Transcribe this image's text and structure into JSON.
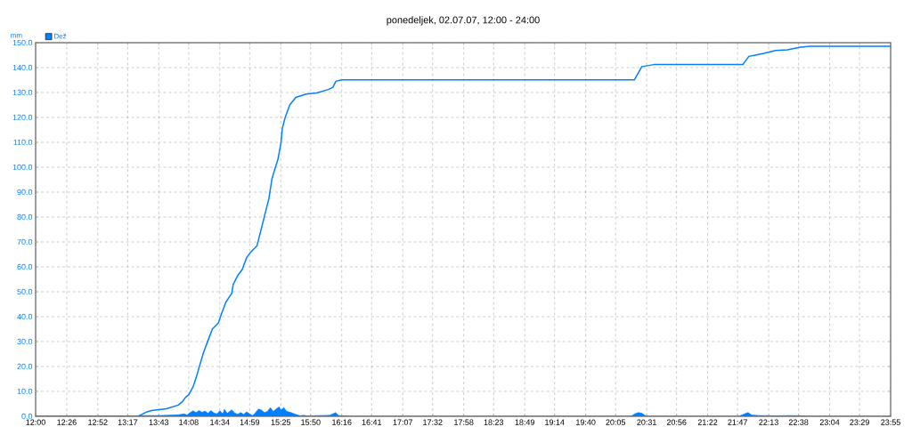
{
  "chart_data": {
    "type": "line",
    "title": "ponedeljek, 02.07.07, 12:00 - 24:00",
    "ylabel": "mm",
    "xlim": [
      12,
      23.9167
    ],
    "ylim": [
      0,
      150
    ],
    "xticks": [
      {
        "value": 12,
        "label": "12:00"
      },
      {
        "value": 12.4333,
        "label": "12:26"
      },
      {
        "value": 12.8667,
        "label": "12:52"
      },
      {
        "value": 13.2833,
        "label": "13:17"
      },
      {
        "value": 13.7167,
        "label": "13:43"
      },
      {
        "value": 14.1333,
        "label": "14:08"
      },
      {
        "value": 14.5667,
        "label": "14:34"
      },
      {
        "value": 14.9833,
        "label": "14:59"
      },
      {
        "value": 15.4167,
        "label": "15:25"
      },
      {
        "value": 15.8333,
        "label": "15:50"
      },
      {
        "value": 16.2667,
        "label": "16:16"
      },
      {
        "value": 16.6833,
        "label": "16:41"
      },
      {
        "value": 17.1167,
        "label": "17:07"
      },
      {
        "value": 17.5333,
        "label": "17:32"
      },
      {
        "value": 17.9667,
        "label": "17:58"
      },
      {
        "value": 18.3833,
        "label": "18:23"
      },
      {
        "value": 18.8167,
        "label": "18:49"
      },
      {
        "value": 19.2333,
        "label": "19:14"
      },
      {
        "value": 19.6667,
        "label": "19:40"
      },
      {
        "value": 20.0833,
        "label": "20:05"
      },
      {
        "value": 20.5167,
        "label": "20:31"
      },
      {
        "value": 20.9333,
        "label": "20:56"
      },
      {
        "value": 21.3667,
        "label": "21:22"
      },
      {
        "value": 21.7833,
        "label": "21:47"
      },
      {
        "value": 22.2167,
        "label": "22:13"
      },
      {
        "value": 22.6333,
        "label": "22:38"
      },
      {
        "value": 23.0667,
        "label": "23:04"
      },
      {
        "value": 23.4833,
        "label": "23:29"
      },
      {
        "value": 23.9167,
        "label": "23:55"
      }
    ],
    "yticks": [
      {
        "value": 0,
        "label": "0.0"
      },
      {
        "value": 10,
        "label": "10.0"
      },
      {
        "value": 20,
        "label": "20.0"
      },
      {
        "value": 30,
        "label": "30.0"
      },
      {
        "value": 40,
        "label": "40.0"
      },
      {
        "value": 50,
        "label": "50.0"
      },
      {
        "value": 60,
        "label": "60.0"
      },
      {
        "value": 70,
        "label": "70.0"
      },
      {
        "value": 80,
        "label": "80.0"
      },
      {
        "value": 90,
        "label": "90.0"
      },
      {
        "value": 100,
        "label": "100.0"
      },
      {
        "value": 110,
        "label": "110.0"
      },
      {
        "value": 120,
        "label": "120.0"
      },
      {
        "value": 130,
        "label": "130.0"
      },
      {
        "value": 140,
        "label": "140.0"
      },
      {
        "value": 150,
        "label": "150.0"
      }
    ],
    "grid": true,
    "legend": "top left",
    "marker": "none",
    "line_style": "solid",
    "series": [
      {
        "type": "area",
        "name": "Dež",
        "color": "#0080ff",
        "x": [
          12,
          13.408,
          13.45,
          13.657,
          13.822,
          13.988,
          14.071,
          14.112,
          14.154,
          14.195,
          14.237,
          14.278,
          14.319,
          14.361,
          14.402,
          14.444,
          14.485,
          14.527,
          14.568,
          14.609,
          14.63,
          14.671,
          14.734,
          14.775,
          14.816,
          14.858,
          14.899,
          14.941,
          14.982,
          15.024,
          15.065,
          15.106,
          15.148,
          15.189,
          15.231,
          15.272,
          15.313,
          15.355,
          15.396,
          15.417,
          15.458,
          15.5,
          15.562,
          15.603,
          15.645,
          15.686,
          15.728,
          15.81,
          15.935,
          16.1,
          16.183,
          16.225,
          16.307,
          16.39,
          20.3,
          20.35,
          20.4,
          20.45,
          20.5,
          20.55,
          21.8,
          21.88,
          21.93,
          21.98,
          22.1,
          22.3,
          22.5,
          22.7,
          22.8,
          23.9167
        ],
        "values": [
          0,
          0,
          0.3,
          0.3,
          0.4,
          0.6,
          1.0,
          0.5,
          1.5,
          2.2,
          1.5,
          2.3,
          1.6,
          2.1,
          1.2,
          2.3,
          1.3,
          1.0,
          2.2,
          1.0,
          2.8,
          1.2,
          2.6,
          1.3,
          0.8,
          1.5,
          0.8,
          1.8,
          1.0,
          0.3,
          1.5,
          2.9,
          2.5,
          1.5,
          2.0,
          3.5,
          2.0,
          3.0,
          3.8,
          2.5,
          3.5,
          2.0,
          1.5,
          1.0,
          0.6,
          0.2,
          0.4,
          0.1,
          0.3,
          0.4,
          1.5,
          0.3,
          0.1,
          0,
          0,
          1.0,
          1.5,
          1.2,
          0.2,
          0,
          0,
          1.0,
          1.5,
          0.5,
          0.3,
          0.2,
          0.3,
          0.2,
          0,
          0
        ]
      },
      {
        "color": "#0080ff",
        "x": [
          12,
          13.429,
          13.553,
          13.615,
          13.822,
          13.988,
          14.05,
          14.092,
          14.133,
          14.195,
          14.237,
          14.278,
          14.34,
          14.402,
          14.464,
          14.547,
          14.589,
          14.651,
          14.734,
          14.754,
          14.816,
          14.879,
          14.941,
          15.003,
          15.086,
          15.148,
          15.21,
          15.252,
          15.293,
          15.335,
          15.376,
          15.418,
          15.438,
          15.48,
          15.542,
          15.625,
          15.77,
          15.915,
          16.081,
          16.143,
          16.185,
          16.267,
          20.346,
          20.449,
          20.615,
          21.857,
          21.94,
          22.044,
          22.148,
          22.313,
          22.478,
          22.644,
          22.789,
          23.9167
        ],
        "values": [
          0,
          0,
          1.8,
          2.3,
          3.0,
          4.5,
          6.0,
          7.7,
          8.6,
          11.9,
          15.5,
          19.6,
          25.6,
          30.4,
          35.1,
          37.5,
          41.1,
          45.8,
          49.4,
          53.0,
          56.5,
          58.9,
          63.7,
          66.1,
          68.5,
          75.6,
          82.7,
          87.5,
          95.2,
          99.4,
          103.0,
          109.5,
          115.5,
          120.2,
          125.0,
          128.0,
          129.4,
          129.8,
          131.2,
          132.1,
          134.5,
          135.1,
          135.1,
          140.4,
          141.2,
          141.2,
          144.5,
          145.1,
          145.7,
          146.9,
          147.1,
          148.1,
          148.6,
          148.6
        ]
      }
    ]
  }
}
